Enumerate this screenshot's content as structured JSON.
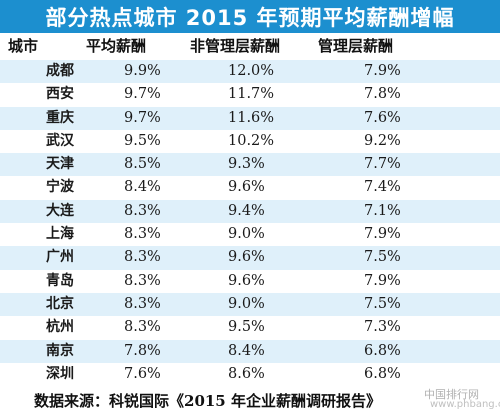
{
  "title": "部分热点城市 2015 年预期平均薪酬增幅",
  "headers": {
    "city": "城市",
    "avg": "平均薪酬",
    "non_mgmt": "非管理层薪酬",
    "mgmt": "管理层薪酬"
  },
  "rows": [
    {
      "city": "成都",
      "avg": "9.9%",
      "non_mgmt": "12.0%",
      "mgmt": "7.9%"
    },
    {
      "city": "西安",
      "avg": "9.7%",
      "non_mgmt": "11.7%",
      "mgmt": "7.8%"
    },
    {
      "city": "重庆",
      "avg": "9.7%",
      "non_mgmt": "11.6%",
      "mgmt": "7.6%"
    },
    {
      "city": "武汉",
      "avg": "9.5%",
      "non_mgmt": "10.2%",
      "mgmt": "9.2%"
    },
    {
      "city": "天津",
      "avg": "8.5%",
      "non_mgmt": "9.3%",
      "mgmt": "7.7%"
    },
    {
      "city": "宁波",
      "avg": "8.4%",
      "non_mgmt": "9.6%",
      "mgmt": "7.4%"
    },
    {
      "city": "大连",
      "avg": "8.3%",
      "non_mgmt": "9.4%",
      "mgmt": "7.1%"
    },
    {
      "city": "上海",
      "avg": "8.3%",
      "non_mgmt": "9.0%",
      "mgmt": "7.9%"
    },
    {
      "city": "广州",
      "avg": "8.3%",
      "non_mgmt": "9.6%",
      "mgmt": "7.5%"
    },
    {
      "city": "青岛",
      "avg": "8.3%",
      "non_mgmt": "9.6%",
      "mgmt": "7.9%"
    },
    {
      "city": "北京",
      "avg": "8.3%",
      "non_mgmt": "9.0%",
      "mgmt": "7.5%"
    },
    {
      "city": "杭州",
      "avg": "8.3%",
      "non_mgmt": "9.5%",
      "mgmt": "7.3%"
    },
    {
      "city": "南京",
      "avg": "7.8%",
      "non_mgmt": "8.4%",
      "mgmt": "6.8%"
    },
    {
      "city": "深圳",
      "avg": "7.6%",
      "non_mgmt": "8.6%",
      "mgmt": "6.8%"
    }
  ],
  "source": "数据来源：科锐国际《2015 年企业薪酬调研报告》",
  "watermark": {
    "site_name": "中国排行网",
    "url": "www.phbang.cn"
  },
  "colors": {
    "title_bg": "#1c8fcf",
    "stripe": "#dff0fa"
  }
}
